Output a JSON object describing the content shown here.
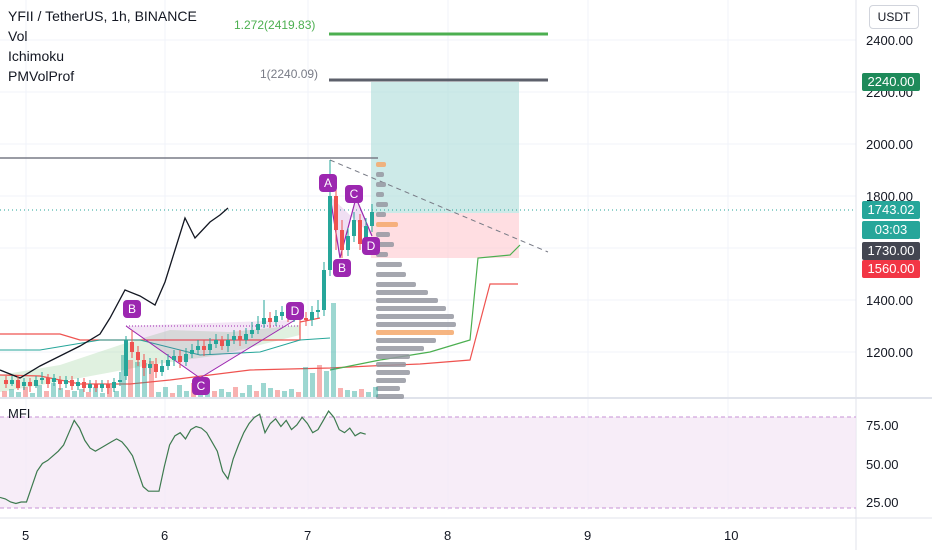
{
  "legend": {
    "title": "YFII / TetherUS, 1h, BINANCE",
    "indicators": [
      "Vol",
      "Ichimoku",
      "PMVolProf"
    ]
  },
  "currency_button": "USDT",
  "fib_labels": {
    "top": "1.272(2419.83)",
    "base": "1(2240.09)"
  },
  "price_tags": {
    "target": "2240.00",
    "current": "1743.02",
    "countdown": "03:03",
    "entry": "1730.00",
    "stop": "1560.00"
  },
  "colors": {
    "up": "#26a69a",
    "down": "#ef5350",
    "pattern": "#9c27b0",
    "fib_top": "#4caf50",
    "fib_base": "#787b86",
    "current_tag": "#26a69a",
    "entry_tag": "#434651",
    "stop_tag": "#f23645",
    "target_tag": "#1e8a5a",
    "mfi_line": "#3d7a4f",
    "mfi_band": "#f3e5f5"
  },
  "pattern_labels": {
    "left": [
      "B",
      "C",
      "D"
    ],
    "right": [
      "A",
      "B",
      "C",
      "D"
    ]
  },
  "mfi": {
    "label": "MFI",
    "values": [
      28,
      27,
      25,
      24,
      25,
      25,
      35,
      45,
      50,
      52,
      55,
      58,
      62,
      70,
      78,
      73,
      65,
      60,
      58,
      60,
      62,
      64,
      66,
      64,
      60,
      55,
      45,
      35,
      32,
      32,
      32,
      48,
      62,
      68,
      70,
      66,
      72,
      74,
      73,
      70,
      64,
      58,
      45,
      40,
      53,
      62,
      70,
      76,
      80,
      82,
      70,
      76,
      79,
      74,
      78,
      72,
      75,
      80,
      76,
      70,
      72,
      78,
      84,
      80,
      72,
      70,
      73,
      68,
      70,
      69
    ]
  },
  "price_axis": [
    "2400.00",
    "2200.00",
    "2000.00",
    "1800.00",
    "1400.00",
    "1200.00"
  ],
  "mfi_axis": [
    "75.00",
    "50.00",
    "25.00"
  ],
  "time_axis": [
    "5",
    "6",
    "7",
    "8",
    "9",
    "10"
  ]
}
